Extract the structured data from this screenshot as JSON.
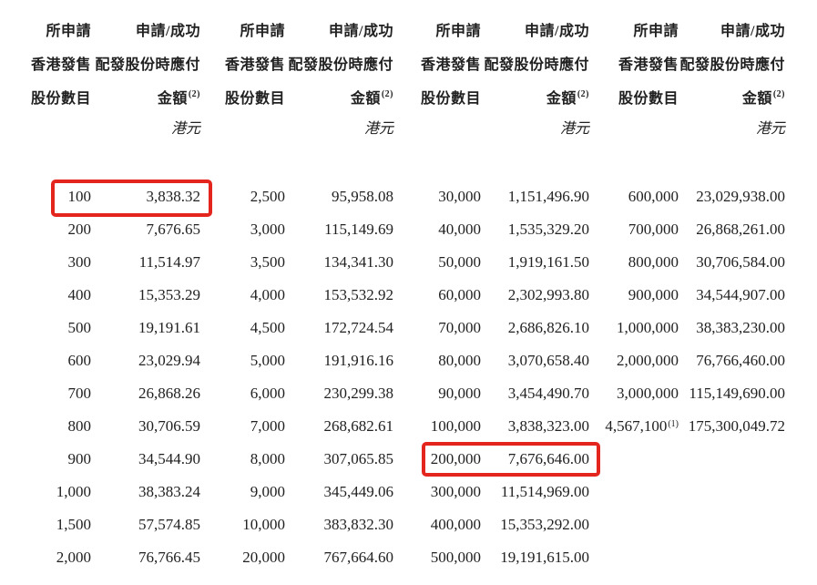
{
  "colors": {
    "highlight_border": "#e4251e",
    "text": "#212121",
    "background": "#ffffff"
  },
  "table": {
    "header": {
      "col_shares_line1": "所申請",
      "col_shares_line2": "香港發售",
      "col_shares_line3": "股份數目",
      "col_amount_line1": "申請/成功",
      "col_amount_line2": "配發股份時應付",
      "col_amount_line3": "金額",
      "col_amount_note": "(2)",
      "currency": "港元"
    },
    "groups": [
      {
        "rows": [
          {
            "shares": "100",
            "amount": "3,838.32",
            "highlight": true
          },
          {
            "shares": "200",
            "amount": "7,676.65"
          },
          {
            "shares": "300",
            "amount": "11,514.97"
          },
          {
            "shares": "400",
            "amount": "15,353.29"
          },
          {
            "shares": "500",
            "amount": "19,191.61"
          },
          {
            "shares": "600",
            "amount": "23,029.94"
          },
          {
            "shares": "700",
            "amount": "26,868.26"
          },
          {
            "shares": "800",
            "amount": "30,706.59"
          },
          {
            "shares": "900",
            "amount": "34,544.90"
          },
          {
            "shares": "1,000",
            "amount": "38,383.24"
          },
          {
            "shares": "1,500",
            "amount": "57,574.85"
          },
          {
            "shares": "2,000",
            "amount": "76,766.45"
          }
        ]
      },
      {
        "rows": [
          {
            "shares": "2,500",
            "amount": "95,958.08"
          },
          {
            "shares": "3,000",
            "amount": "115,149.69"
          },
          {
            "shares": "3,500",
            "amount": "134,341.30"
          },
          {
            "shares": "4,000",
            "amount": "153,532.92"
          },
          {
            "shares": "4,500",
            "amount": "172,724.54"
          },
          {
            "shares": "5,000",
            "amount": "191,916.16"
          },
          {
            "shares": "6,000",
            "amount": "230,299.38"
          },
          {
            "shares": "7,000",
            "amount": "268,682.61"
          },
          {
            "shares": "8,000",
            "amount": "307,065.85"
          },
          {
            "shares": "9,000",
            "amount": "345,449.06"
          },
          {
            "shares": "10,000",
            "amount": "383,832.30"
          },
          {
            "shares": "20,000",
            "amount": "767,664.60"
          }
        ]
      },
      {
        "rows": [
          {
            "shares": "30,000",
            "amount": "1,151,496.90"
          },
          {
            "shares": "40,000",
            "amount": "1,535,329.20"
          },
          {
            "shares": "50,000",
            "amount": "1,919,161.50"
          },
          {
            "shares": "60,000",
            "amount": "2,302,993.80"
          },
          {
            "shares": "70,000",
            "amount": "2,686,826.10"
          },
          {
            "shares": "80,000",
            "amount": "3,070,658.40"
          },
          {
            "shares": "90,000",
            "amount": "3,454,490.70"
          },
          {
            "shares": "100,000",
            "amount": "3,838,323.00"
          },
          {
            "shares": "200,000",
            "amount": "7,676,646.00",
            "highlight": true
          },
          {
            "shares": "300,000",
            "amount": "11,514,969.00"
          },
          {
            "shares": "400,000",
            "amount": "15,353,292.00"
          },
          {
            "shares": "500,000",
            "amount": "19,191,615.00"
          }
        ]
      },
      {
        "rows": [
          {
            "shares": "600,000",
            "amount": "23,029,938.00"
          },
          {
            "shares": "700,000",
            "amount": "26,868,261.00"
          },
          {
            "shares": "800,000",
            "amount": "30,706,584.00"
          },
          {
            "shares": "900,000",
            "amount": "34,544,907.00"
          },
          {
            "shares": "1,000,000",
            "amount": "38,383,230.00"
          },
          {
            "shares": "2,000,000",
            "amount": "76,766,460.00"
          },
          {
            "shares": "3,000,000",
            "amount": "115,149,690.00"
          },
          {
            "shares": "4,567,100",
            "shares_note": "(1)",
            "amount": "175,300,049.72"
          }
        ]
      }
    ]
  }
}
